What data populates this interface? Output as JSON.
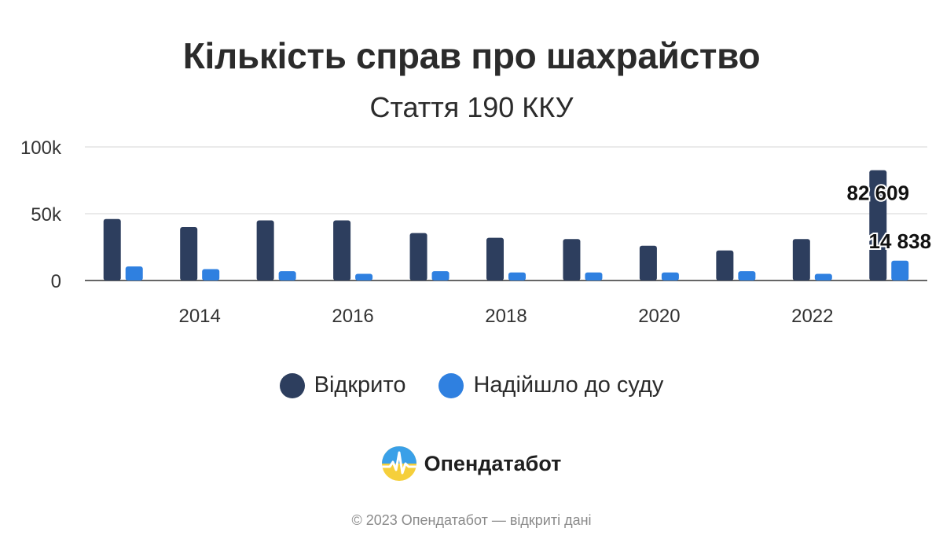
{
  "chart_data": {
    "type": "bar",
    "title": "Кількість справ про шахрайство",
    "subtitle": "Стаття 190 ККУ",
    "xlabel": "",
    "ylabel": "",
    "categories": [
      "2013",
      "2014",
      "2015",
      "2016",
      "2017",
      "2018",
      "2019",
      "2020",
      "2021",
      "2022",
      "2023"
    ],
    "x_tick_labels": [
      "2014",
      "2016",
      "2018",
      "2020",
      "2022"
    ],
    "y_tick_labels": [
      "0",
      "50k",
      "100k"
    ],
    "y_ticks": [
      0,
      50000,
      100000
    ],
    "ylim": [
      0,
      100000
    ],
    "grid": true,
    "legend_position": "bottom",
    "series": [
      {
        "name": "Відкрито",
        "color": "#2d3e5e",
        "values": [
          46000,
          40000,
          45000,
          45000,
          35500,
          32000,
          31000,
          26000,
          22500,
          31000,
          82609
        ]
      },
      {
        "name": "Надійшло до суду",
        "color": "#2f80e0",
        "values": [
          10500,
          8500,
          7000,
          5000,
          7000,
          6000,
          6000,
          6000,
          7000,
          5000,
          14838
        ]
      }
    ],
    "annotations": [
      {
        "series": 0,
        "category": "2023",
        "text": "82 609"
      },
      {
        "series": 1,
        "category": "2023",
        "text": "14 838"
      }
    ]
  },
  "logo": {
    "name": "Опендатабот"
  },
  "footer": {
    "text": "© 2023 Опендатабот — відкриті дані"
  }
}
